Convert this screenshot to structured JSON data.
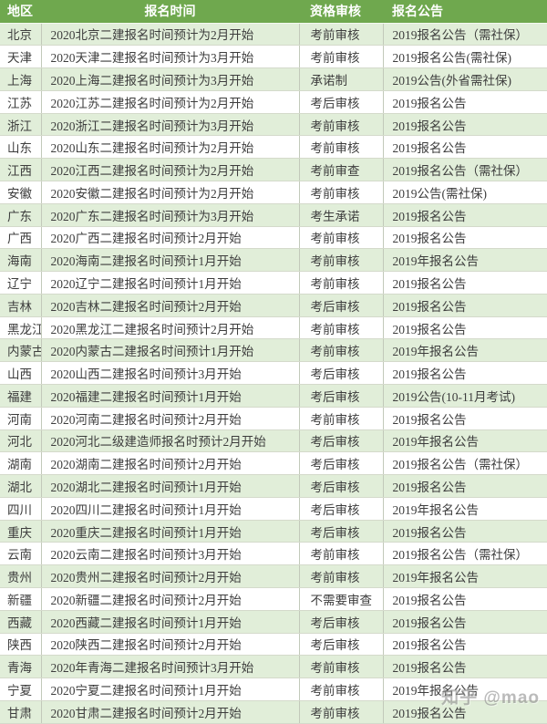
{
  "chart_data": {
    "type": "table",
    "columns": [
      "地区",
      "报名时间",
      "资格审核",
      "报名公告"
    ],
    "rows": [
      [
        "北京",
        "2020北京二建报名时间预计为2月开始",
        "考前审核",
        "2019报名公告（需社保）"
      ],
      [
        "天津",
        "2020天津二建报名时间预计为3月开始",
        "考前审核",
        "2019报名公告(需社保)"
      ],
      [
        "上海",
        "2020上海二建报名时间预计为3月开始",
        "承诺制",
        "2019公告(外省需社保)"
      ],
      [
        "江苏",
        "2020江苏二建报名时间预计为2月开始",
        "考后审核",
        "2019报名公告"
      ],
      [
        "浙江",
        "2020浙江二建报名时间预计为3月开始",
        "考前审核",
        "2019报名公告"
      ],
      [
        "山东",
        "2020山东二建报名时间预计为2月开始",
        "考前审核",
        "2019报名公告"
      ],
      [
        "江西",
        "2020江西二建报名时间预计为2月开始",
        "考前审查",
        "2019报名公告（需社保）"
      ],
      [
        "安徽",
        "2020安徽二建报名时间预计为2月开始",
        "考前审核",
        "2019公告(需社保)"
      ],
      [
        "广东",
        "2020广东二建报名时间预计为3月开始",
        "考生承诺",
        "2019报名公告"
      ],
      [
        "广西",
        "2020广西二建报名时间预计2月开始",
        "考前审核",
        "2019报名公告"
      ],
      [
        "海南",
        "2020海南二建报名时间预计1月开始",
        "考前审核",
        "2019年报名公告"
      ],
      [
        "辽宁",
        "2020辽宁二建报名时间预计1月开始",
        "考前审核",
        "2019报名公告"
      ],
      [
        "吉林",
        "2020吉林二建报名时间预计2月开始",
        "考后审核",
        "2019报名公告"
      ],
      [
        "黑龙江",
        "2020黑龙江二建报名时间预计2月开始",
        "考前审核",
        "2019报名公告"
      ],
      [
        "内蒙古",
        "2020内蒙古二建报名时间预计1月开始",
        "考前审核",
        "2019年报名公告"
      ],
      [
        "山西",
        "2020山西二建报名时间预计3月开始",
        "考后审核",
        "2019报名公告"
      ],
      [
        "福建",
        "2020福建二建报名时间预计1月开始",
        "考后审核",
        "2019公告(10-11月考试)"
      ],
      [
        "河南",
        "2020河南二建报名时间预计2月开始",
        "考前审核",
        "2019报名公告"
      ],
      [
        "河北",
        "2020河北二级建造师报名时预计2月开始",
        "考后审核",
        "2019年报名公告"
      ],
      [
        "湖南",
        "2020湖南二建报名时间预计2月开始",
        "考后审核",
        "2019报名公告（需社保）"
      ],
      [
        "湖北",
        "2020湖北二建报名时间预计1月开始",
        "考后审核",
        "2019报名公告"
      ],
      [
        "四川",
        "2020四川二建报名时间预计1月开始",
        "考后审核",
        "2019年报名公告"
      ],
      [
        "重庆",
        "2020重庆二建报名时间预计1月开始",
        "考后审核",
        "2019报名公告"
      ],
      [
        "云南",
        "2020云南二建报名时间预计3月开始",
        "考前审核",
        "2019报名公告（需社保）"
      ],
      [
        "贵州",
        "2020贵州二建报名时间预计2月开始",
        "考前审核",
        "2019年报名公告"
      ],
      [
        "新疆",
        "2020新疆二建报名时间预计2月开始",
        "不需要审查",
        "2019报名公告"
      ],
      [
        "西藏",
        "2020西藏二建报名时间预计1月开始",
        "考后审核",
        "2019报名公告"
      ],
      [
        "陕西",
        "2020陕西二建报名时间预计2月开始",
        "考后审核",
        "2019报名公告"
      ],
      [
        "青海",
        "2020年青海二建报名时间预计3月开始",
        "考前审核",
        "2019报名公告"
      ],
      [
        "宁夏",
        "2020宁夏二建报名时间预计1月开始",
        "考前审核",
        "2019年报名公告"
      ],
      [
        "甘肃",
        "2020甘肃二建报名时间预计2月开始",
        "考前审核",
        "2019报名公告"
      ]
    ]
  },
  "watermark": {
    "text": "知乎 @mao"
  },
  "colors": {
    "header_bg": "#6fa84e",
    "header_text": "#ffffff",
    "row_alt_bg": "#e1eed9",
    "row_bg": "#ffffff",
    "body_text": "#3d3d3d",
    "grid_vertical": "#c2c9ba",
    "grid_horizontal": "#d4dacb",
    "watermark": "#8f8f8f"
  }
}
